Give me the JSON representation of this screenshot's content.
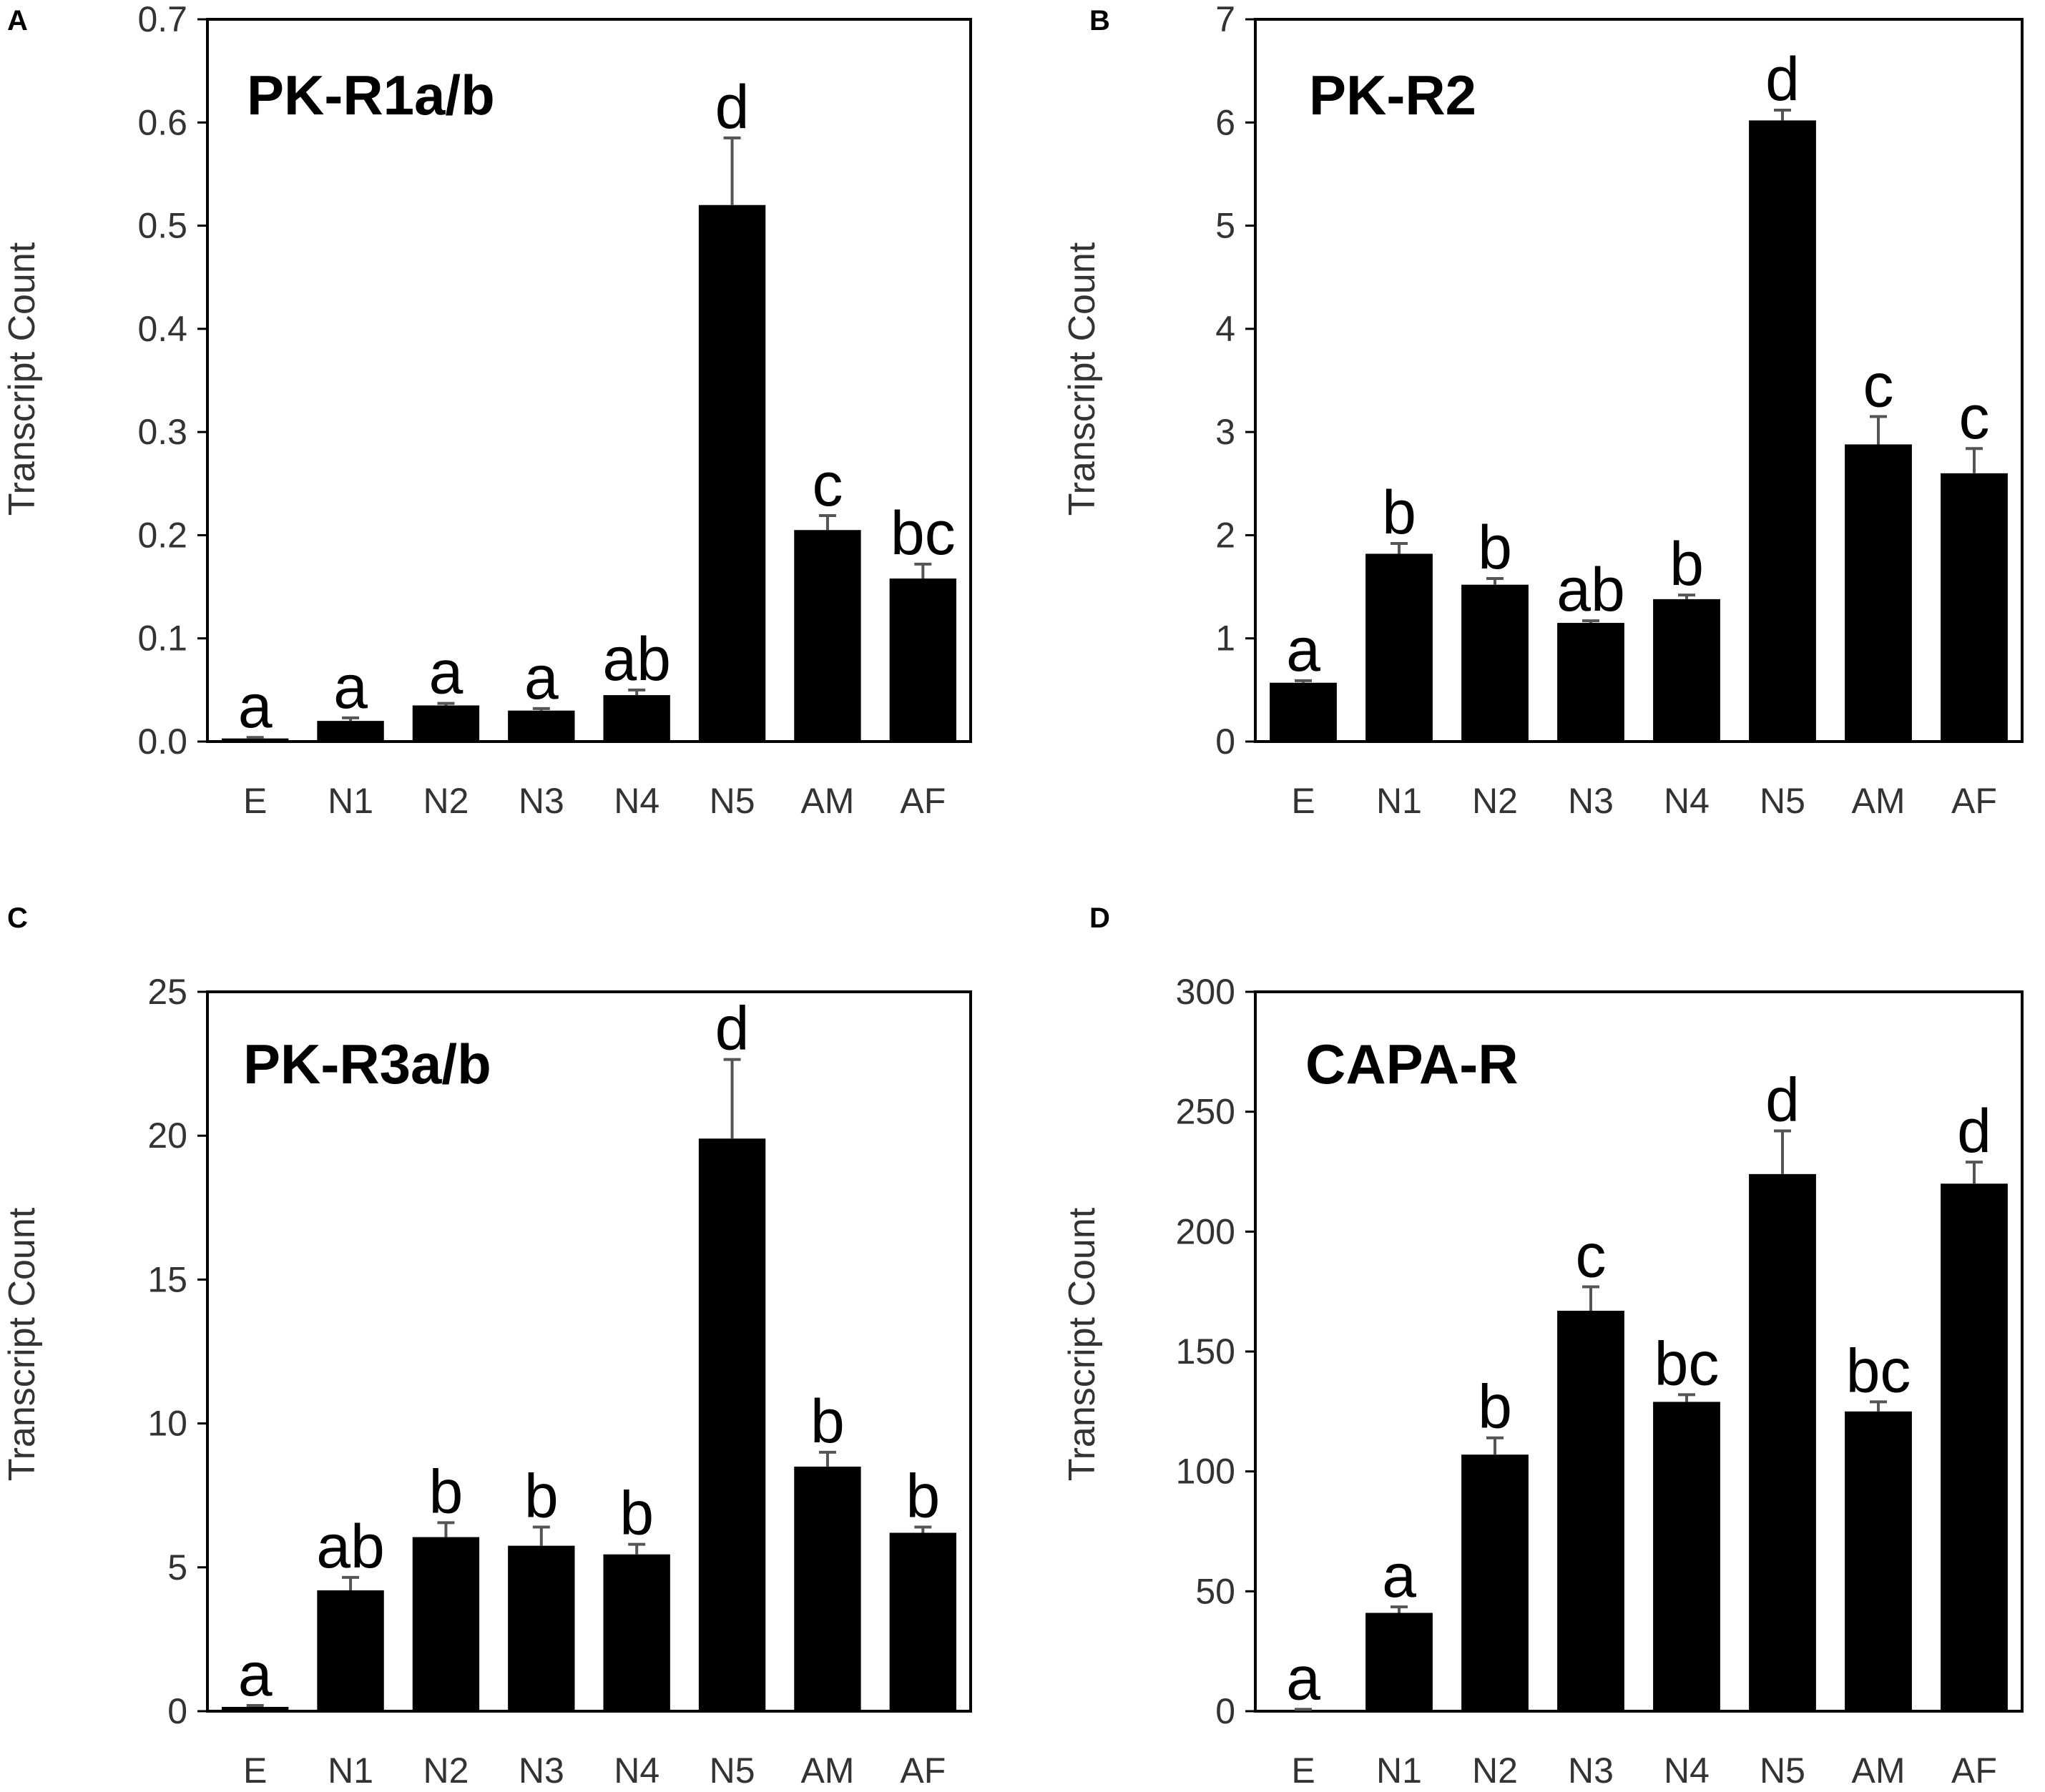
{
  "chart_data": [
    {
      "type": "bar",
      "panel": "A",
      "title": "PK-R1a/b",
      "xlabel": "",
      "ylabel": "Transcript Count",
      "categories": [
        "E",
        "N1",
        "N2",
        "N3",
        "N4",
        "N5",
        "AM",
        "AF"
      ],
      "values": [
        0.003,
        0.02,
        0.035,
        0.03,
        0.045,
        0.52,
        0.205,
        0.158
      ],
      "errors": [
        0.001,
        0.003,
        0.002,
        0.002,
        0.005,
        0.065,
        0.014,
        0.014
      ],
      "letters": [
        "a",
        "a",
        "a",
        "a",
        "ab",
        "d",
        "c",
        "bc"
      ],
      "ylim": [
        0,
        0.7
      ],
      "yticks": [
        "0.0",
        "0.1",
        "0.2",
        "0.3",
        "0.4",
        "0.5",
        "0.6",
        "0.7"
      ]
    },
    {
      "type": "bar",
      "panel": "B",
      "title": "PK-R2",
      "xlabel": "",
      "ylabel": "Transcript Count",
      "categories": [
        "E",
        "N1",
        "N2",
        "N3",
        "N4",
        "N5",
        "AM",
        "AF"
      ],
      "values": [
        0.57,
        1.82,
        1.52,
        1.15,
        1.38,
        6.02,
        2.88,
        2.6
      ],
      "errors": [
        0.02,
        0.1,
        0.06,
        0.02,
        0.04,
        0.1,
        0.27,
        0.24
      ],
      "letters": [
        "a",
        "b",
        "b",
        "ab",
        "b",
        "d",
        "c",
        "c"
      ],
      "ylim": [
        0,
        7
      ],
      "yticks": [
        "0",
        "1",
        "2",
        "3",
        "4",
        "5",
        "6",
        "7"
      ]
    },
    {
      "type": "bar",
      "panel": "C",
      "title": "PK-R3a/b",
      "xlabel": "",
      "ylabel": "Transcript Count",
      "categories": [
        "E",
        "N1",
        "N2",
        "N3",
        "N4",
        "N5",
        "AM",
        "AF"
      ],
      "values": [
        0.15,
        4.2,
        6.05,
        5.75,
        5.45,
        19.9,
        8.5,
        6.2
      ],
      "errors": [
        0.05,
        0.45,
        0.5,
        0.65,
        0.35,
        2.75,
        0.5,
        0.2
      ],
      "letters": [
        "a",
        "ab",
        "b",
        "b",
        "b",
        "d",
        "b",
        "b"
      ],
      "ylim": [
        0,
        25
      ],
      "yticks": [
        "0",
        "5",
        "10",
        "15",
        "20",
        "25"
      ]
    },
    {
      "type": "bar",
      "panel": "D",
      "title": "CAPA-R",
      "xlabel": "",
      "ylabel": "Transcript Count",
      "categories": [
        "E",
        "N1",
        "N2",
        "N3",
        "N4",
        "N5",
        "AM",
        "AF"
      ],
      "values": [
        0.5,
        41,
        107,
        167,
        129,
        224,
        125,
        220
      ],
      "errors": [
        0.3,
        2.5,
        7,
        10,
        3,
        18,
        4,
        9
      ],
      "letters": [
        "a",
        "a",
        "b",
        "c",
        "bc",
        "d",
        "bc",
        "d"
      ],
      "ylim": [
        0,
        300
      ],
      "yticks": [
        "0",
        "50",
        "100",
        "150",
        "200",
        "250",
        "300"
      ]
    }
  ]
}
